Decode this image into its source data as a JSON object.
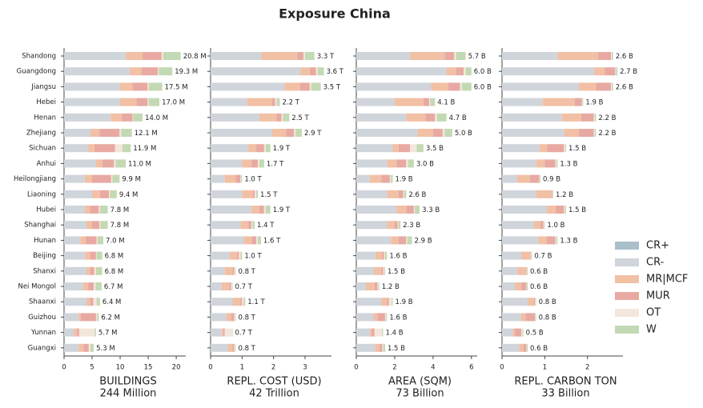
{
  "title": "Exposure China",
  "chart_data": [
    {
      "type": "bar",
      "orientation": "horizontal",
      "stacked": true,
      "categories": [
        "Shandong",
        "Guangdong",
        "Jiangsu",
        "Hebei",
        "Henan",
        "Zhejiang",
        "Sichuan",
        "Anhui",
        "Heilongjiang",
        "Liaoning",
        "Hubei",
        "Shanghai",
        "Hunan",
        "Beijing",
        "Shanxi",
        "Nei Mongol",
        "Shaanxi",
        "Guizhou",
        "Yunnan",
        "Guangxi"
      ],
      "xlabel": [
        "BUILDINGS",
        "244 Million"
      ],
      "xlim": [
        0,
        21.7
      ],
      "xticks": [
        0,
        5,
        10,
        15,
        20
      ],
      "series": [
        {
          "name": "CR+",
          "color": "#a9bfca",
          "values": [
            0,
            0,
            0,
            0,
            0,
            0,
            0,
            0,
            0,
            0,
            0,
            0,
            0,
            0,
            0,
            0,
            0,
            0,
            0,
            0
          ]
        },
        {
          "name": "CR-",
          "color": "#d0d4db",
          "values": [
            11.0,
            11.7,
            9.9,
            10.0,
            8.3,
            4.7,
            4.3,
            5.7,
            3.7,
            5.0,
            3.7,
            4.0,
            2.9,
            3.7,
            4.0,
            3.4,
            4.0,
            2.6,
            1.7,
            2.6
          ]
        },
        {
          "name": "MR|MCF",
          "color": "#f2c0a5",
          "values": [
            3.0,
            2.1,
            2.3,
            2.9,
            2.0,
            1.6,
            1.1,
            1.1,
            1.3,
            1.4,
            0.9,
            1.0,
            0.9,
            1.0,
            0.7,
            0.9,
            0.6,
            0.4,
            0.6,
            0.9
          ]
        },
        {
          "name": "MUR",
          "color": "#e8a9a3",
          "values": [
            3.4,
            2.9,
            2.7,
            2.0,
            1.9,
            3.6,
            3.7,
            2.1,
            3.4,
            1.6,
            1.6,
            1.3,
            2.0,
            1.0,
            0.7,
            1.0,
            0.6,
            2.7,
            0.4,
            0.9
          ]
        },
        {
          "name": "OT",
          "color": "#f3e6da",
          "values": [
            0.3,
            0.2,
            0.2,
            0.2,
            0.1,
            0.3,
            1.3,
            0.3,
            0.2,
            0.2,
            0.2,
            0.2,
            0.2,
            0.1,
            0.3,
            0.3,
            0.6,
            0.2,
            2.8,
            0.3
          ]
        },
        {
          "name": "W",
          "color": "#c3d9b4",
          "values": [
            3.1,
            2.4,
            2.4,
            1.9,
            1.7,
            1.9,
            1.5,
            1.8,
            1.3,
            1.2,
            1.4,
            1.3,
            1.0,
            1.0,
            1.1,
            1.1,
            0.6,
            0.3,
            0.2,
            0.6
          ]
        }
      ],
      "totals": {
        "values": [
          20.8,
          19.3,
          17.5,
          17.0,
          14.0,
          12.1,
          11.9,
          11.0,
          9.9,
          9.4,
          7.8,
          7.8,
          7.0,
          6.8,
          6.8,
          6.7,
          6.4,
          6.2,
          5.7,
          5.3
        ],
        "value_labels": [
          "20.8 M",
          "19.3 M",
          "17.5 M",
          "17.0 M",
          "14.0 M",
          "12.1 M",
          "11.9 M",
          "11.0 M",
          "9.9 M",
          "9.4 M",
          "7.8 M",
          "7.8 M",
          "7.0 M",
          "6.8 M",
          "6.8 M",
          "6.7 M",
          "6.4 M",
          "6.2 M",
          "5.7 M",
          "5.3 M"
        ]
      }
    },
    {
      "type": "bar",
      "orientation": "horizontal",
      "stacked": true,
      "xlabel": [
        "REPL. COST (USD)",
        "42 Trillion"
      ],
      "xlim": [
        0,
        3.84
      ],
      "xticks": [
        0,
        1,
        2,
        3
      ],
      "series": [
        {
          "values": [
            0,
            0,
            0,
            0,
            0,
            0,
            0,
            0,
            0,
            0,
            0,
            0,
            0,
            0,
            0,
            0,
            0,
            0,
            0,
            0
          ]
        },
        {
          "values": [
            1.6,
            2.85,
            2.35,
            1.15,
            1.55,
            1.95,
            1.2,
            1.0,
            0.45,
            1.0,
            1.3,
            0.95,
            1.05,
            0.6,
            0.45,
            0.35,
            0.7,
            0.5,
            0.35,
            0.55
          ]
        },
        {
          "values": [
            1.15,
            0.3,
            0.5,
            0.8,
            0.55,
            0.45,
            0.25,
            0.3,
            0.35,
            0.35,
            0.25,
            0.25,
            0.25,
            0.25,
            0.25,
            0.25,
            0.25,
            0.15,
            0.05,
            0.15
          ]
        },
        {
          "values": [
            0.2,
            0.2,
            0.3,
            0.1,
            0.15,
            0.25,
            0.25,
            0.2,
            0.15,
            0.05,
            0.15,
            0.1,
            0.15,
            0.05,
            0.05,
            0.05,
            0.05,
            0.1,
            0.05,
            0.05
          ]
        },
        {
          "values": [
            0.05,
            0.05,
            0.05,
            0.05,
            0.05,
            0.05,
            0.05,
            0.05,
            0.02,
            0.05,
            0.05,
            0.03,
            0.05,
            0.05,
            0.03,
            0.03,
            0.05,
            0.03,
            0.23,
            0.03
          ]
        },
        {
          "values": [
            0.3,
            0.2,
            0.3,
            0.1,
            0.2,
            0.2,
            0.15,
            0.15,
            0.03,
            0.05,
            0.15,
            0.07,
            0.1,
            0.05,
            0.02,
            0.02,
            0.05,
            0.02,
            0.02,
            0.02
          ]
        }
      ],
      "totals": {
        "values": [
          3.3,
          3.6,
          3.5,
          2.2,
          2.5,
          2.9,
          1.9,
          1.7,
          1.0,
          1.5,
          1.9,
          1.4,
          1.6,
          1.0,
          0.8,
          0.7,
          1.1,
          0.8,
          0.7,
          0.8
        ],
        "value_labels": [
          "3.3 T",
          "3.6 T",
          "3.5 T",
          "2.2 T",
          "2.5 T",
          "2.9 T",
          "1.9 T",
          "1.7 T",
          "1.0 T",
          "1.5 T",
          "1.9 T",
          "1.4 T",
          "1.6 T",
          "1.0 T",
          "0.8 T",
          "0.7 T",
          "1.1 T",
          "0.8 T",
          "0.7 T",
          "0.8 T"
        ]
      }
    },
    {
      "type": "bar",
      "orientation": "horizontal",
      "stacked": true,
      "xlabel": [
        "AREA (SQM)",
        "73 Billion"
      ],
      "xlim": [
        0,
        6.3
      ],
      "xticks": [
        0,
        2,
        4,
        6
      ],
      "series": [
        {
          "values": [
            0,
            0,
            0,
            0,
            0,
            0,
            0,
            0,
            0,
            0,
            0,
            0,
            0,
            0,
            0,
            0,
            0,
            0,
            0,
            0
          ]
        },
        {
          "values": [
            2.8,
            4.7,
            3.9,
            2.0,
            2.6,
            3.2,
            1.9,
            1.6,
            0.7,
            1.6,
            2.1,
            1.6,
            1.8,
            1.0,
            0.9,
            0.5,
            1.3,
            0.9,
            0.7,
            1.0
          ]
        },
        {
          "values": [
            1.8,
            0.5,
            0.9,
            1.5,
            1.0,
            0.8,
            0.3,
            0.5,
            0.6,
            0.6,
            0.5,
            0.4,
            0.4,
            0.35,
            0.4,
            0.45,
            0.3,
            0.2,
            0.1,
            0.2
          ]
        },
        {
          "values": [
            0.5,
            0.4,
            0.6,
            0.3,
            0.5,
            0.5,
            0.6,
            0.5,
            0.45,
            0.25,
            0.4,
            0.15,
            0.4,
            0.1,
            0.1,
            0.15,
            0.1,
            0.4,
            0.15,
            0.15
          ]
        },
        {
          "values": [
            0.1,
            0.1,
            0.1,
            0.05,
            0.1,
            0.1,
            0.35,
            0.1,
            0.05,
            0.05,
            0.05,
            0.05,
            0.05,
            0.05,
            0.05,
            0.05,
            0.15,
            0.05,
            0.4,
            0.05
          ]
        },
        {
          "values": [
            0.5,
            0.3,
            0.5,
            0.25,
            0.5,
            0.4,
            0.35,
            0.3,
            0.1,
            0.1,
            0.25,
            0.1,
            0.25,
            0.1,
            0.05,
            0.05,
            0.05,
            0.05,
            0.05,
            0.1
          ]
        }
      ],
      "totals": {
        "values": [
          5.7,
          6.0,
          6.0,
          4.1,
          4.7,
          5.0,
          3.5,
          3.0,
          1.9,
          2.6,
          3.3,
          2.3,
          2.9,
          1.6,
          1.5,
          1.2,
          1.9,
          1.6,
          1.4,
          1.5
        ],
        "value_labels": [
          "5.7 B",
          "6.0 B",
          "6.0 B",
          "4.1 B",
          "4.7 B",
          "5.0 B",
          "3.5 B",
          "3.0 B",
          "1.9 B",
          "2.6 B",
          "3.3 B",
          "2.3 B",
          "2.9 B",
          "1.6 B",
          "1.5 B",
          "1.2 B",
          "1.9 B",
          "1.6 B",
          "1.4 B",
          "1.5 B"
        ]
      }
    },
    {
      "type": "bar",
      "orientation": "horizontal",
      "stacked": true,
      "xlabel": [
        "REPL. CARBON TON",
        "33 Billion"
      ],
      "xlim": [
        0,
        2.83
      ],
      "xticks": [
        0,
        1,
        2
      ],
      "series": [
        {
          "values": [
            0,
            0,
            0,
            0,
            0,
            0,
            0,
            0,
            0,
            0,
            0,
            0,
            0,
            0,
            0,
            0,
            0,
            0,
            0,
            0
          ]
        },
        {
          "values": [
            1.3,
            2.15,
            1.8,
            0.95,
            1.4,
            1.45,
            0.88,
            0.8,
            0.35,
            0.8,
            1.05,
            0.75,
            0.85,
            0.45,
            0.35,
            0.3,
            0.6,
            0.45,
            0.25,
            0.4
          ]
        },
        {
          "values": [
            0.95,
            0.25,
            0.4,
            0.75,
            0.45,
            0.35,
            0.18,
            0.2,
            0.3,
            0.35,
            0.2,
            0.15,
            0.2,
            0.2,
            0.2,
            0.15,
            0.15,
            0.1,
            0.05,
            0.1
          ]
        },
        {
          "values": [
            0.3,
            0.25,
            0.35,
            0.17,
            0.3,
            0.35,
            0.39,
            0.25,
            0.22,
            0.02,
            0.2,
            0.07,
            0.2,
            0.02,
            0.02,
            0.12,
            0.02,
            0.22,
            0.15,
            0.07
          ]
        },
        {
          "values": [
            0.02,
            0.02,
            0.02,
            0.01,
            0.02,
            0.02,
            0.03,
            0.02,
            0.01,
            0.01,
            0.02,
            0.01,
            0.02,
            0.01,
            0.01,
            0.01,
            0.01,
            0.01,
            0.03,
            0.01
          ]
        },
        {
          "values": [
            0.03,
            0.03,
            0.03,
            0.02,
            0.03,
            0.03,
            0.02,
            0.03,
            0.02,
            0.02,
            0.03,
            0.02,
            0.03,
            0.02,
            0.02,
            0.02,
            0.02,
            0.02,
            0.02,
            0.02
          ]
        }
      ],
      "totals": {
        "values": [
          2.6,
          2.7,
          2.6,
          1.9,
          2.2,
          2.2,
          1.5,
          1.3,
          0.9,
          1.2,
          1.5,
          1.0,
          1.3,
          0.7,
          0.6,
          0.6,
          0.8,
          0.8,
          0.5,
          0.6
        ],
        "value_labels": [
          "2.6 B",
          "2.7 B",
          "2.6 B",
          "1.9 B",
          "2.2 B",
          "2.2 B",
          "1.5 B",
          "1.3 B",
          "0.9 B",
          "1.2 B",
          "1.5 B",
          "1.0 B",
          "1.3 B",
          "0.7 B",
          "0.6 B",
          "0.6 B",
          "0.8 B",
          "0.8 B",
          "0.5 B",
          "0.6 B"
        ]
      }
    }
  ]
}
